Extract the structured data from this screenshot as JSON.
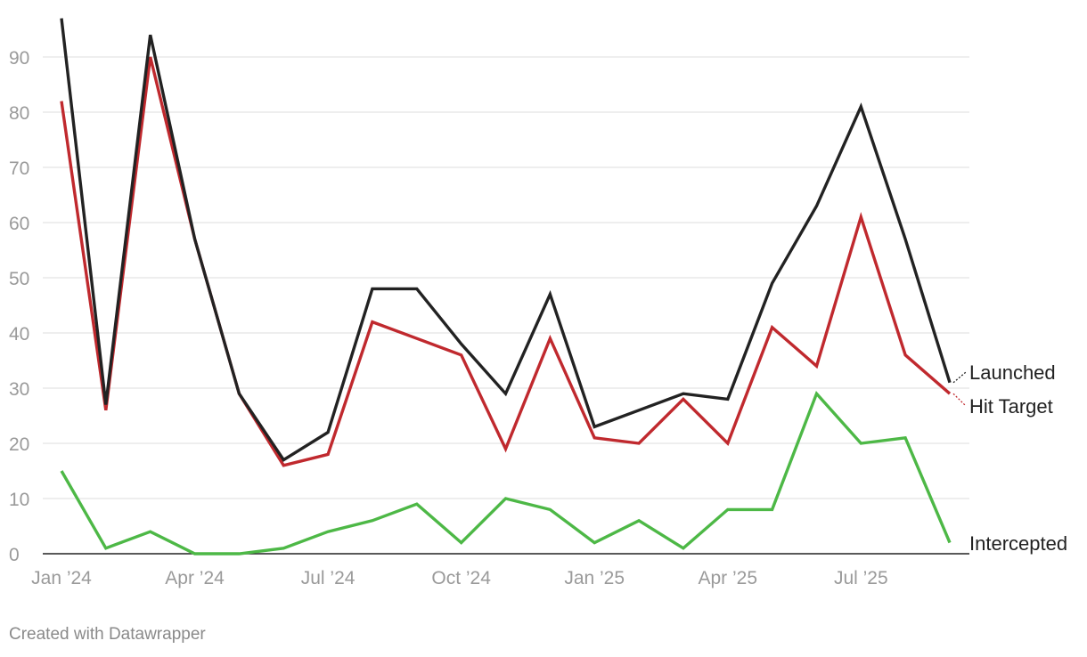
{
  "chart_data": {
    "type": "line",
    "x": [
      "Jan 2024",
      "Feb 2024",
      "Mar 2024",
      "Apr 2024",
      "May 2024",
      "Jun 2024",
      "Jul 2024",
      "Aug 2024",
      "Sep 2024",
      "Oct 2024",
      "Nov 2024",
      "Dec 2024",
      "Jan 2025",
      "Feb 2025",
      "Mar 2025",
      "Apr 2025",
      "May 2025",
      "Jun 2025",
      "Jul 2025",
      "Aug 2025",
      "Sep 2025"
    ],
    "x_tick_labels": [
      {
        "index": 0,
        "label": "Jan ’24"
      },
      {
        "index": 3,
        "label": "Apr ’24"
      },
      {
        "index": 6,
        "label": "Jul ’24"
      },
      {
        "index": 9,
        "label": "Oct ’24"
      },
      {
        "index": 12,
        "label": "Jan ’25"
      },
      {
        "index": 15,
        "label": "Apr ’25"
      },
      {
        "index": 18,
        "label": "Jul ’25"
      }
    ],
    "y_ticks": [
      0,
      10,
      20,
      30,
      40,
      50,
      60,
      70,
      80,
      90
    ],
    "ylim": [
      0,
      97
    ],
    "grid": true,
    "series": [
      {
        "name": "Launched",
        "color": "#222222",
        "values": [
          97,
          27,
          94,
          57,
          29,
          17,
          22,
          48,
          48,
          38,
          29,
          47,
          23,
          26,
          29,
          28,
          49,
          63,
          81,
          57,
          31
        ]
      },
      {
        "name": "Hit Target",
        "color": "#c0292e",
        "values": [
          82,
          26,
          90,
          57,
          29,
          16,
          18,
          42,
          39,
          36,
          19,
          39,
          21,
          20,
          28,
          20,
          41,
          34,
          61,
          36,
          29
        ]
      },
      {
        "name": "Intercepted",
        "color": "#4db846",
        "values": [
          15,
          1,
          4,
          0,
          0,
          1,
          4,
          6,
          9,
          2,
          10,
          8,
          2,
          6,
          1,
          8,
          8,
          29,
          20,
          21,
          2
        ]
      }
    ]
  },
  "credit": "Created with Datawrapper"
}
